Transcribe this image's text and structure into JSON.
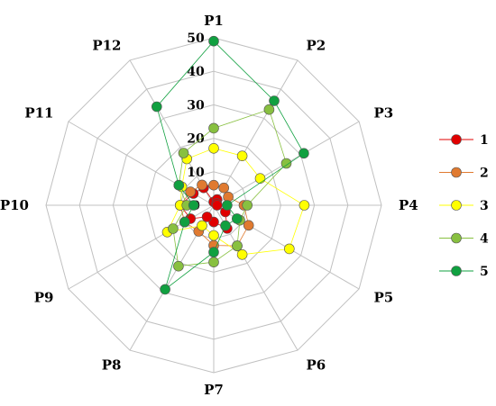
{
  "chart_data": {
    "type": "radar",
    "categories": [
      "P1",
      "P2",
      "P3",
      "P4",
      "P5",
      "P6",
      "P7",
      "P8",
      "P9",
      "P10",
      "P11",
      "P12"
    ],
    "r_ticks": [
      "0",
      "10",
      "20",
      "30",
      "40",
      "50"
    ],
    "r_range": [
      0,
      50
    ],
    "grid": true,
    "legend_position": "right",
    "series": [
      {
        "name": "1",
        "color": "#e00000",
        "values": [
          1,
          2,
          1,
          1,
          4,
          8,
          5,
          4,
          8,
          10,
          7,
          6
        ]
      },
      {
        "name": "2",
        "color": "#e07a30",
        "values": [
          6,
          6,
          5,
          9,
          12,
          14,
          12,
          9,
          10,
          10,
          8,
          7
        ]
      },
      {
        "name": "3",
        "color": "#ffff00",
        "values": [
          17,
          17,
          16,
          27,
          26,
          17,
          9,
          7,
          16,
          10,
          11,
          16
        ]
      },
      {
        "name": "4",
        "color": "#88c040",
        "values": [
          23,
          33,
          25,
          10,
          9,
          14,
          17,
          21,
          14,
          8,
          12,
          18
        ]
      },
      {
        "name": "5",
        "color": "#10a040",
        "values": [
          49,
          36,
          31,
          4,
          8,
          7,
          14,
          29,
          10,
          6,
          12,
          34
        ]
      }
    ]
  }
}
